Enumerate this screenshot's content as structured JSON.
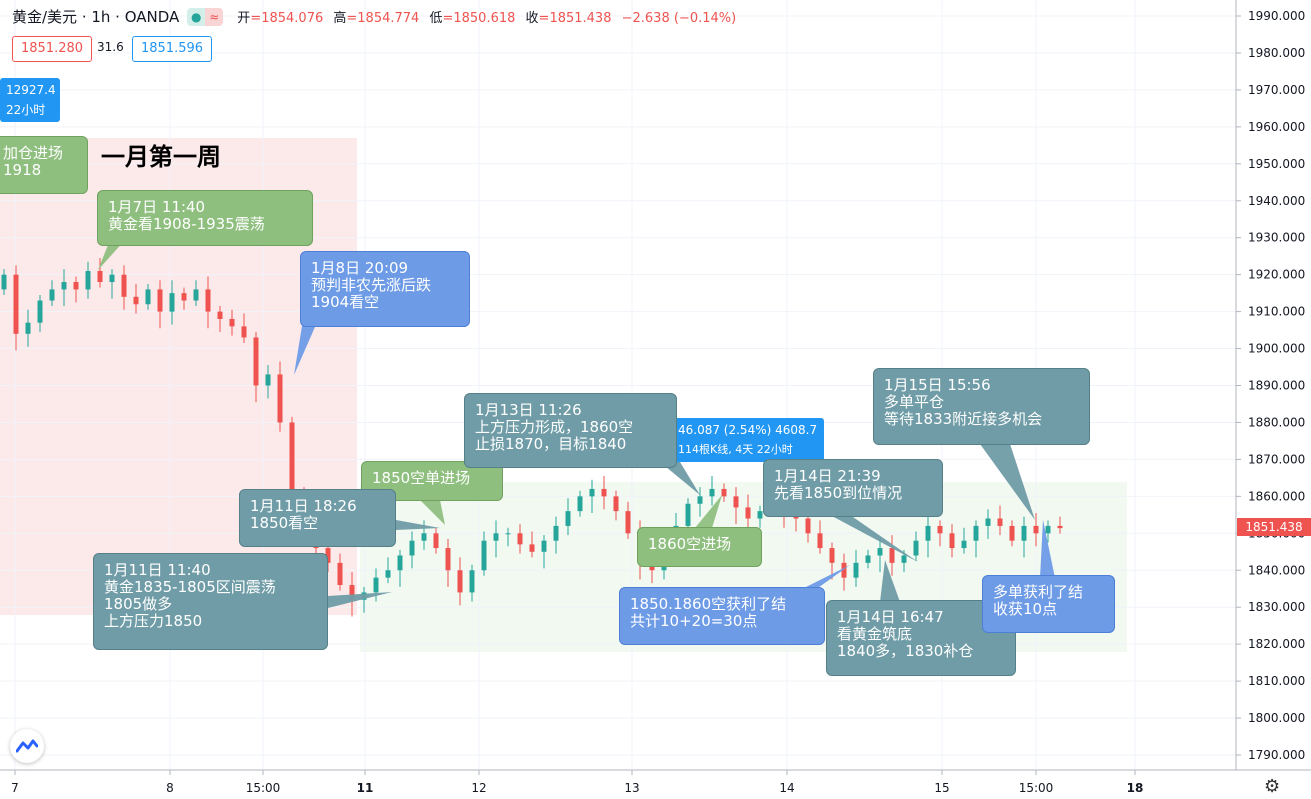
{
  "header": {
    "symbol": "黄金/美元 · 1h · OANDA",
    "open_label": "开",
    "open": "=1854.076",
    "high_label": "高",
    "high": "=1854.774",
    "low_label": "低",
    "low": "=1850.618",
    "close_label": "收",
    "close": "=1851.438",
    "change": "−2.638 (−0.14%)",
    "badge_icons": [
      "dot-icon",
      "wave-icon"
    ]
  },
  "bid": {
    "sell": "1851.280",
    "spread": "31.6",
    "buy": "1851.596"
  },
  "colors": {
    "up": "#26a69a",
    "down": "#ef5350",
    "price_tag": "#ef5350"
  },
  "title": "一月第一周",
  "info_boxes": [
    {
      "line1": "12927.4",
      "line2": "22小时"
    },
    {
      "line1": "46.087 (2.54%) 4608.7",
      "line2": "114根K线, 4天 22小时"
    }
  ],
  "annotations": [
    {
      "id": "a1",
      "line1": "加仓进场",
      "line2": "1918",
      "line3": ""
    },
    {
      "id": "a2",
      "line1": "1月7日 11:40",
      "line2": "黄金看1908-1935震荡",
      "line3": ""
    },
    {
      "id": "a3",
      "line1": "1月8日 20:09",
      "line2": "预判非农先涨后跌",
      "line3": "1904看空"
    },
    {
      "id": "a4",
      "line1": "1850空单进场",
      "line2": "",
      "line3": ""
    },
    {
      "id": "a5",
      "line1": "1月11日 18:26",
      "line2": "1850看空",
      "line3": ""
    },
    {
      "id": "a6",
      "line1": "1月11日 11:40",
      "line2": "黄金1835-1805区间震荡",
      "line3": "1805做多",
      "line4": "上方压力1850"
    },
    {
      "id": "a7",
      "line1": "1月13日 11:26",
      "line2": "上方压力形成，1860空",
      "line3": "止损1870，目标1840"
    },
    {
      "id": "a8",
      "line1": "1860空进场",
      "line2": "",
      "line3": ""
    },
    {
      "id": "a9",
      "line1": "1850.1860空获利了结",
      "line2": "共计10+20=30点",
      "line3": ""
    },
    {
      "id": "a10",
      "line1": "1月14日 21:39",
      "line2": "先看1850到位情况",
      "line3": ""
    },
    {
      "id": "a11",
      "line1": "1月14日 16:47",
      "line2": "看黄金筑底",
      "line3": "1840多，1830补仓"
    },
    {
      "id": "a12",
      "line1": "1月15日 15:56",
      "line2": "多单平仓",
      "line3": "等待1833附近接多机会"
    },
    {
      "id": "a13",
      "line1": "多单获利了结",
      "line2": "收获10点",
      "line3": ""
    }
  ],
  "chart_data": {
    "type": "candlestick",
    "y_ticks": [
      1790,
      1800,
      1810,
      1820,
      1830,
      1840,
      1850,
      1860,
      1870,
      1880,
      1890,
      1900,
      1910,
      1920,
      1930,
      1940,
      1950,
      1960,
      1970,
      1980,
      1990
    ],
    "ylim": [
      1785,
      1995
    ],
    "x_ticks": [
      "7",
      "8",
      "15:00",
      "11",
      "12",
      "13",
      "14",
      "15",
      "15:00",
      "18"
    ],
    "last_price": "1851.438",
    "closes": [
      1920,
      1904,
      1907,
      1913,
      1916,
      1918,
      1916,
      1921,
      1918,
      1920,
      1914,
      1912,
      1916,
      1910,
      1915,
      1913,
      1916,
      1910,
      1908,
      1906,
      1903,
      1890,
      1893,
      1880,
      1860,
      1852,
      1846,
      1842,
      1836,
      1832,
      1834,
      1838,
      1840,
      1844,
      1848,
      1850,
      1846,
      1840,
      1834,
      1840,
      1848,
      1850,
      1850,
      1847,
      1845,
      1848,
      1852,
      1856,
      1860,
      1862,
      1860,
      1856,
      1850,
      1842,
      1840,
      1846,
      1852,
      1858,
      1860,
      1862,
      1860,
      1857,
      1854,
      1856,
      1858,
      1856,
      1854,
      1850,
      1846,
      1842,
      1838,
      1842,
      1844,
      1846,
      1842,
      1844,
      1848,
      1852,
      1850,
      1846,
      1848,
      1852,
      1854,
      1852,
      1848,
      1852,
      1850,
      1852,
      1851.4
    ]
  }
}
